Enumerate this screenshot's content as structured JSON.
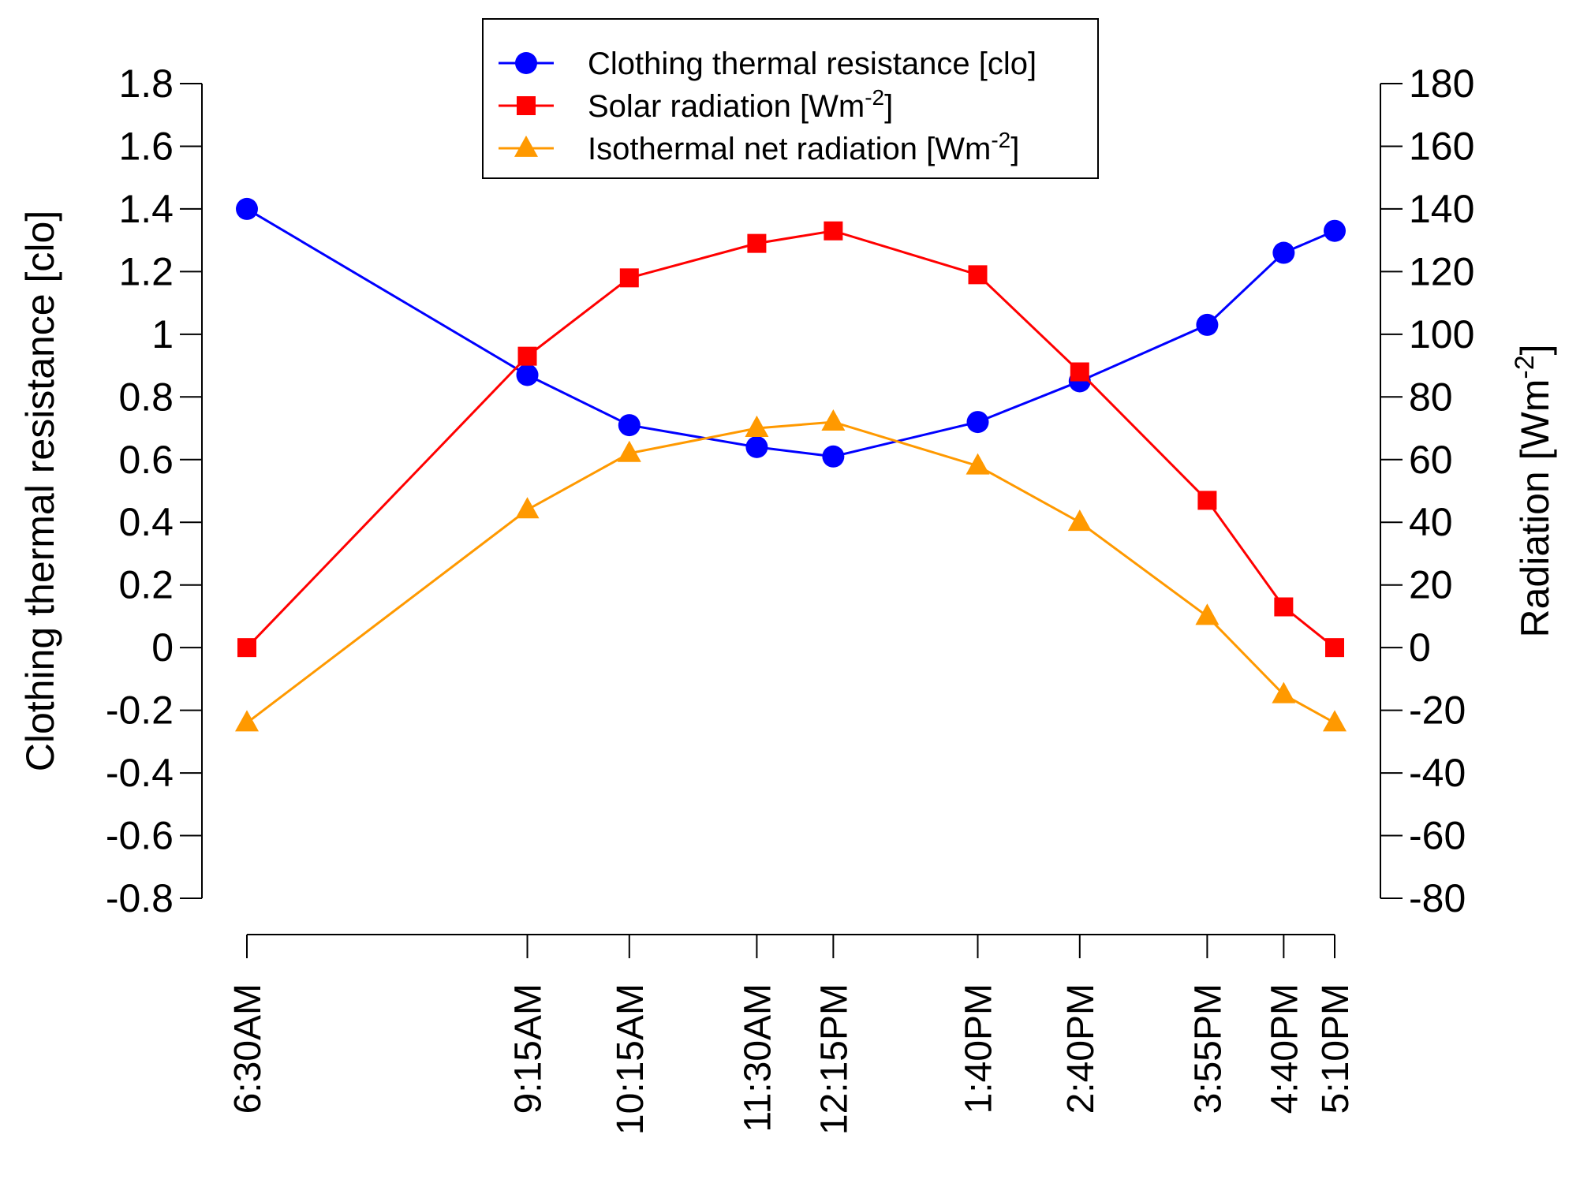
{
  "chart_data": {
    "type": "line",
    "categories": [
      "6:30AM",
      "9:15AM",
      "10:15AM",
      "11:30AM",
      "12:15PM",
      "1:40PM",
      "2:40PM",
      "3:55PM",
      "4:40PM",
      "5:10PM"
    ],
    "x_minutes": [
      390,
      555,
      615,
      690,
      735,
      820,
      880,
      955,
      1000,
      1030
    ],
    "left_axis": {
      "label": "Clothing thermal resistance [clo]",
      "ylim": [
        -0.8,
        1.8
      ],
      "ticks": [
        -0.8,
        -0.6,
        -0.4,
        -0.2,
        0,
        0.2,
        0.4,
        0.6,
        0.8,
        1,
        1.2,
        1.4,
        1.6,
        1.8
      ],
      "tick_labels": [
        "-0.8",
        "-0.6",
        "-0.4",
        "-0.2",
        "0",
        "0.2",
        "0.4",
        "0.6",
        "0.8",
        "1",
        "1.2",
        "1.4",
        "1.6",
        "1.8"
      ]
    },
    "right_axis": {
      "label": "Radiation [Wm",
      "label_sup": "-2",
      "label_close": "]",
      "ylim": [
        -80,
        180
      ],
      "ticks": [
        -80,
        -60,
        -40,
        -20,
        0,
        20,
        40,
        60,
        80,
        100,
        120,
        140,
        160,
        180
      ],
      "tick_labels": [
        "-80",
        "-60",
        "-40",
        "-20",
        "0",
        "20",
        "40",
        "60",
        "80",
        "100",
        "120",
        "140",
        "160",
        "180"
      ]
    },
    "series": [
      {
        "name": "Clothing thermal resistance [clo]",
        "legend_text": "Clothing thermal resistance [clo]",
        "legend_sup": "",
        "legend_close": "",
        "axis": "left",
        "color": "#0000ff",
        "marker": "circle",
        "values": [
          1.4,
          0.87,
          0.71,
          0.64,
          0.61,
          0.72,
          0.85,
          1.03,
          1.26,
          1.33
        ]
      },
      {
        "name": "Solar radiation [Wm-2]",
        "legend_text": "Solar radiation [Wm",
        "legend_sup": "-2",
        "legend_close": "]",
        "axis": "right",
        "color": "#ff0000",
        "marker": "square",
        "values": [
          0,
          93,
          118,
          129,
          133,
          119,
          88,
          47,
          13,
          0
        ]
      },
      {
        "name": "Isothermal net radiation [Wm-2]",
        "legend_text": "Isothermal net radiation [Wm",
        "legend_sup": "-2",
        "legend_close": "]",
        "axis": "right",
        "color": "#ff9900",
        "marker": "triangle",
        "values": [
          -24,
          44,
          62,
          70,
          72,
          58,
          40,
          10,
          -15,
          -24
        ]
      }
    ],
    "legend_position": "top-center"
  }
}
